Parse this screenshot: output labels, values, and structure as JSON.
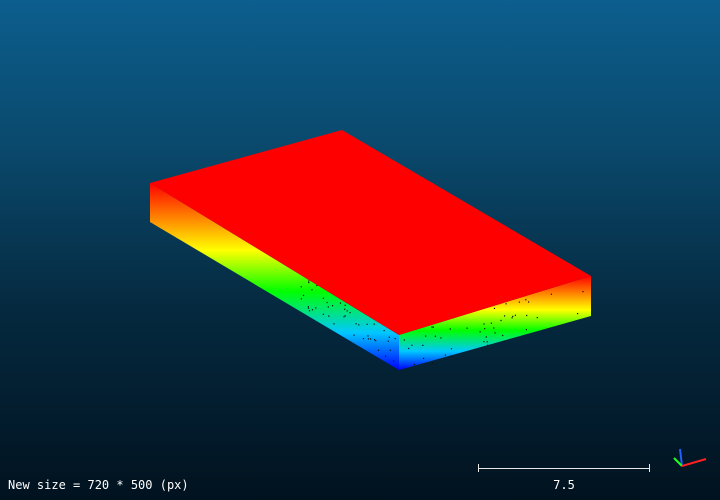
{
  "viewer": {
    "status_text": "New size = 720 * 500 (px)",
    "scale_value": "7.5",
    "background_top": "#0c5e8e",
    "background_bottom": "#01121f"
  },
  "point_cloud": {
    "shape": "rectangular-slab",
    "colormap": "height",
    "colormap_stops": [
      "#0000ff",
      "#00c8ff",
      "#00ff00",
      "#ffff00",
      "#ff8000",
      "#ff0000"
    ],
    "top_color": "#ff0000"
  },
  "axes": {
    "x_color": "#ff2020",
    "y_color": "#20ff20",
    "z_color": "#2060ff"
  }
}
